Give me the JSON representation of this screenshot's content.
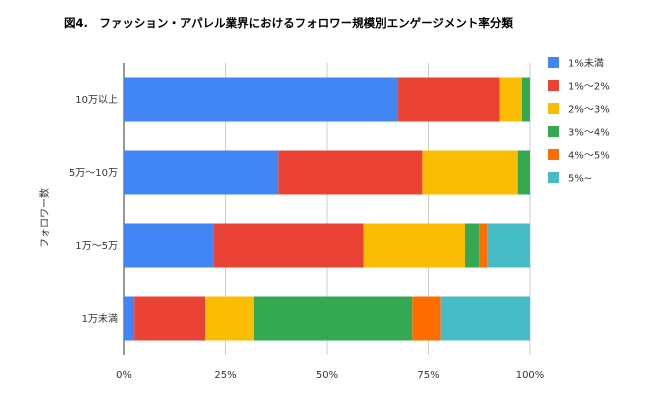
{
  "chart_data": {
    "type": "bar",
    "orientation": "horizontal",
    "stacked": "percent",
    "title": "図4.　ファッション・アパレル業界におけるフォロワー規模別エンゲージメント率分類",
    "ylabel": "フォロワー数",
    "xlabel": "",
    "categories": [
      "10万以上",
      "5万～10万",
      "1万～5万",
      "1万未満"
    ],
    "xlim": [
      0,
      100
    ],
    "xticks": [
      "0%",
      "25%",
      "50%",
      "75%",
      "100%"
    ],
    "grid": "vertical",
    "legend_position": "right",
    "series": [
      {
        "name": "1%未満",
        "color": "#4285F4",
        "values": [
          67.5,
          38.0,
          22.0,
          2.5
        ]
      },
      {
        "name": "1%～2%",
        "color": "#EA4335",
        "values": [
          25.0,
          35.5,
          37.0,
          17.5
        ]
      },
      {
        "name": "2%～3%",
        "color": "#FBBC04",
        "values": [
          5.5,
          23.5,
          25.0,
          12.0
        ]
      },
      {
        "name": "3%～4%",
        "color": "#34A853",
        "values": [
          2.0,
          3.0,
          3.5,
          39.0
        ]
      },
      {
        "name": "4%～5%",
        "color": "#FF6D01",
        "values": [
          0,
          0,
          2.0,
          7.0
        ]
      },
      {
        "name": "5%~",
        "color": "#46BDC6",
        "values": [
          0,
          0,
          10.5,
          22.0
        ]
      }
    ]
  }
}
